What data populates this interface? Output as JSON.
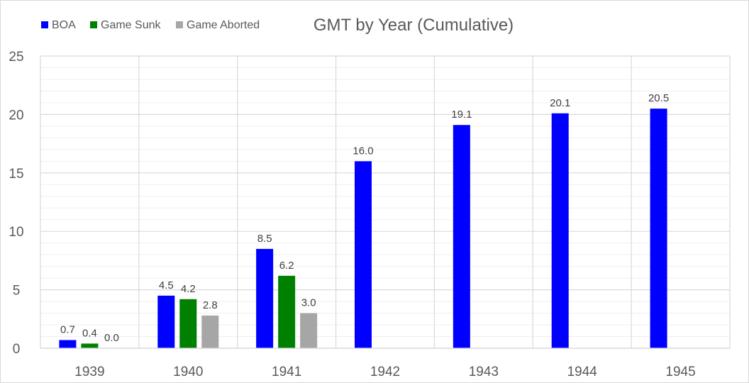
{
  "chart_data": {
    "type": "bar",
    "title": "GMT by Year (Cumulative)",
    "xlabel": "",
    "ylabel": "",
    "categories": [
      "1939",
      "1940",
      "1941",
      "1942",
      "1943",
      "1944",
      "1945"
    ],
    "series": [
      {
        "name": "BOA",
        "color": "#0000ff",
        "values": [
          0.7,
          4.5,
          8.5,
          16.0,
          19.1,
          20.1,
          20.5
        ],
        "labels": [
          "0.7",
          "4.5",
          "8.5",
          "16.0",
          "19.1",
          "20.1",
          "20.5"
        ]
      },
      {
        "name": "Game Sunk",
        "color": "#008000",
        "values": [
          0.4,
          4.2,
          6.2,
          null,
          null,
          null,
          null
        ],
        "labels": [
          "0.4",
          "4.2",
          "6.2",
          null,
          null,
          null,
          null
        ]
      },
      {
        "name": "Game Aborted",
        "color": "#a6a6a6",
        "values": [
          0.0,
          2.8,
          3.0,
          null,
          null,
          null,
          null
        ],
        "labels": [
          "0.0",
          "2.8",
          "3.0",
          null,
          null,
          null,
          null
        ]
      }
    ],
    "ylim": [
      0,
      25
    ],
    "yticks": [
      0,
      5,
      10,
      15,
      20,
      25
    ],
    "ytick_labels": [
      "0",
      "5",
      "10",
      "15",
      "20",
      "25"
    ],
    "minor_step": 1,
    "grid": true,
    "legend_position": "top-left"
  }
}
